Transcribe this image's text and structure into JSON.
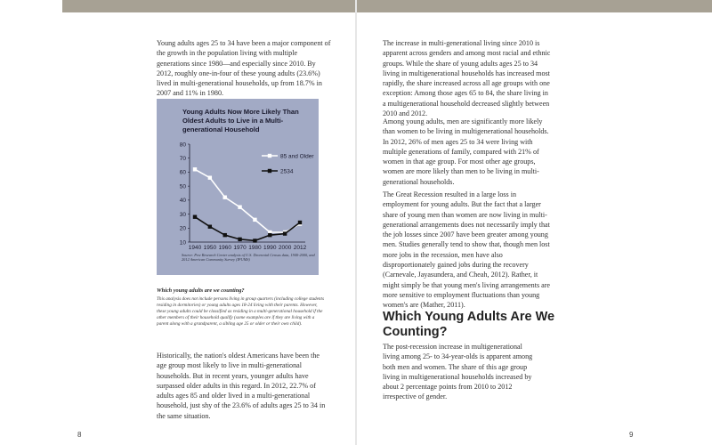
{
  "left_page": {
    "para1": "Young adults ages 25 to 34 have been a major component of the growth in the population living with multiple generations since 1980—and especially since 2010. By 2012, roughly one-in-four of these young adults (23.6%) lived in multi-generational households, up from 18.7% in 2007 and 11% in 1980.",
    "chart_title": "Young Adults Now More Likely Than Oldest Adults to Live in a Multi-generational Household",
    "chart_source": "Source: Pew Research Center analysis of U.S. Decennial Census data, 1940-2000, and 2012 American Community Survey (IPUMS)",
    "note_heading": "Which young adults are we counting?",
    "note_text": "This analysis does not include persons living in group quarters (including college students residing in dormitories) or young adults ages 18-24 living with their parents. However, these young adults could be classified as residing in a multi-generational household if the other members of their household qualify (some examples are if they are living with a parent along with a grandparent, a sibling age 25 or older or their own child).",
    "para2": "Historically, the nation's oldest Americans have been the age group most likely to live in multi-generational households. But in recent years, younger adults have surpassed older adults in this regard. In 2012, 22.7% of adults ages 85 and older lived in a multi-generational household, just shy of the 23.6% of adults ages 25 to 34 in the same situation.",
    "page_number": "8"
  },
  "right_page": {
    "para1": "The increase in multi-generational living since 2010 is apparent across genders and among most racial and ethnic groups. While the share of young adults ages 25 to 34 living in multigenerational households has increased most rapidly, the share increased across all age groups with one exception: Among those ages 65 to 84, the share living in a multigenerational household decreased slightly between 2010 and 2012.",
    "para2": "Among young adults, men are significantly more likely than women to be living in multigenerational households. In 2012, 26% of men ages 25 to 34 were living with multiple generations of family, compared with 21% of women in that age group. For most other age groups, women are more likely than men to be living in multi-generational households.",
    "para3": "The Great Recession resulted in a large loss in employment for young adults. But the fact that a larger share of young men than women are now living in multi-generational arrangements does not necessarily imply that the job losses since 2007 have been greater among young men. Studies generally tend to show that, though men lost more jobs in the recession, men have also disproportionately gained jobs during the recovery (Carnevale, Jayasundera, and Cheah, 2012). Rather, it might simply be that young men's living arrangements are more sensitive to employment fluctuations than young women's are (Mather, 2011).",
    "section_heading": "Which Young Adults Are We Counting?",
    "para4": "The post-recession increase in multigenerational living among 25- to 34-year-olds is apparent among both men and women. The share of this age group living in multigenerational households increased by about 2 percentage points from 2010 to 2012 irrespective of gender.",
    "page_number": "9"
  },
  "colors": {
    "band": "#a7a194",
    "chart_bg": "#a2aac5",
    "series_85": "#ffffff",
    "series_2534": "#111111"
  },
  "chart_data": {
    "type": "line",
    "title": "Young Adults Now More Likely Than Oldest Adults to Live in a Multi-generational Household",
    "x": [
      "1940",
      "1950",
      "1960",
      "1970",
      "1980",
      "1990",
      "2000",
      "2012"
    ],
    "series": [
      {
        "name": "85 and Older",
        "values": [
          62,
          56,
          42,
          35,
          26,
          17,
          17,
          23
        ]
      },
      {
        "name": "2534",
        "values": [
          28,
          21,
          15,
          12,
          11,
          15,
          16,
          24
        ]
      }
    ],
    "y_ticks": [
      10,
      20,
      30,
      40,
      50,
      60,
      70,
      80
    ],
    "ylim": [
      10,
      80
    ],
    "grid": false,
    "legend": "top-right",
    "xlabel": "",
    "ylabel": ""
  }
}
